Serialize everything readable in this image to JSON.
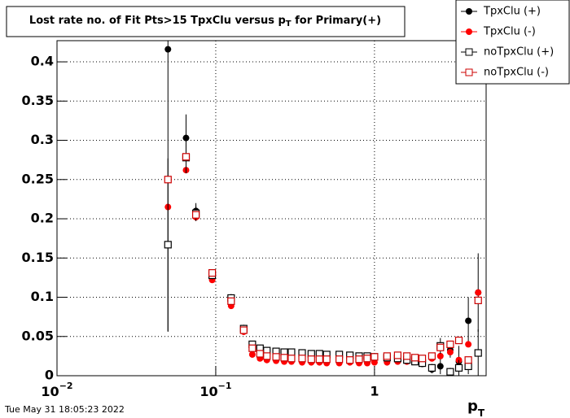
{
  "chart_data": {
    "type": "scatter",
    "title": {
      "before": "Lost rate no. of Fit Pts>15 TpxClu versus p",
      "sub": "T",
      "after": " for Primary(+)"
    },
    "x_label": {
      "main": "p",
      "sub": "T"
    },
    "timestamp": "Tue May 31 18:05:23 2022",
    "log_x": true,
    "grid": true,
    "legend": "top-right",
    "xlim": [
      0.01,
      5.05
    ],
    "ylim": [
      0,
      0.427
    ],
    "xticks": [
      {
        "value": 0.01,
        "label": "10",
        "exponent": "−2"
      },
      {
        "value": 0.1,
        "label": "10",
        "exponent": "−1"
      },
      1
    ],
    "yticks": [
      0,
      0.05,
      0.1,
      0.15,
      0.2,
      0.25,
      0.3,
      0.35,
      0.4
    ],
    "x": [
      0.05,
      0.065,
      0.075,
      0.095,
      0.125,
      0.15,
      0.17,
      0.19,
      0.21,
      0.24,
      0.27,
      0.3,
      0.35,
      0.4,
      0.45,
      0.5,
      0.6,
      0.7,
      0.8,
      0.9,
      1.0,
      1.2,
      1.4,
      1.6,
      1.8,
      2.0,
      2.3,
      2.6,
      3.0,
      3.4,
      3.9,
      4.5
    ],
    "series": [
      {
        "name": "TpxClu (+)",
        "color": "#000000",
        "marker": "circle",
        "values": [
          0.416,
          0.303,
          0.21,
          0.125,
          0.093,
          0.06,
          0.035,
          0.03,
          0.029,
          0.028,
          0.027,
          0.026,
          0.026,
          0.027,
          0.025,
          0.025,
          0.024,
          0.025,
          0.024,
          0.023,
          0.022,
          0.022,
          0.021,
          0.021,
          0.019,
          0.015,
          0.008,
          0.012,
          0.033,
          0.018,
          0.07,
          0.106
        ],
        "errors": [
          0.36,
          0.03,
          0.01,
          0.005,
          0.006,
          0.005,
          0.004,
          0.003,
          0.003,
          0.003,
          0.003,
          0.003,
          0.003,
          0.003,
          0.003,
          0.003,
          0.003,
          0.003,
          0.003,
          0.003,
          0.003,
          0.003,
          0.003,
          0.003,
          0.003,
          0.003,
          0.005,
          0.01,
          0.01,
          0.02,
          0.03,
          0.05
        ]
      },
      {
        "name": "TpxClu (-)",
        "color": "#ff0000",
        "marker": "circle",
        "values": [
          0.215,
          0.262,
          0.202,
          0.122,
          0.089,
          0.056,
          0.027,
          0.022,
          0.02,
          0.019,
          0.018,
          0.018,
          0.017,
          0.017,
          0.017,
          0.016,
          0.016,
          0.017,
          0.016,
          0.016,
          0.017,
          0.017,
          0.018,
          0.018,
          0.019,
          0.02,
          0.022,
          0.025,
          0.03,
          0.02,
          0.04,
          0.106
        ]
      },
      {
        "name": "noTpxClu (+)",
        "color": "#000000",
        "marker": "square",
        "values": [
          0.167,
          0.278,
          0.207,
          0.128,
          0.099,
          0.06,
          0.04,
          0.035,
          0.032,
          0.031,
          0.03,
          0.03,
          0.029,
          0.028,
          0.028,
          0.027,
          0.027,
          0.026,
          0.025,
          0.025,
          0.024,
          0.023,
          0.022,
          0.02,
          0.018,
          0.016,
          0.01,
          0.038,
          0.005,
          0.01,
          0.012,
          0.029
        ],
        "errors": [
          0.11,
          0.02,
          0.01,
          0.005,
          0.005,
          0.004,
          0.003,
          0.003,
          0.003,
          0.003,
          0.003,
          0.003,
          0.003,
          0.003,
          0.003,
          0.003,
          0.003,
          0.003,
          0.003,
          0.003,
          0.003,
          0.003,
          0.003,
          0.003,
          0.003,
          0.003,
          0.005,
          0.01,
          0.005,
          0.01,
          0.01,
          0.03
        ]
      },
      {
        "name": "noTpxClu (-)",
        "color": "#cc0000",
        "marker": "square",
        "values": [
          0.25,
          0.279,
          0.205,
          0.131,
          0.095,
          0.058,
          0.035,
          0.028,
          0.025,
          0.024,
          0.023,
          0.022,
          0.022,
          0.021,
          0.021,
          0.021,
          0.021,
          0.02,
          0.021,
          0.022,
          0.024,
          0.025,
          0.026,
          0.025,
          0.023,
          0.022,
          0.025,
          0.036,
          0.04,
          0.045,
          0.02,
          0.096
        ]
      }
    ]
  }
}
